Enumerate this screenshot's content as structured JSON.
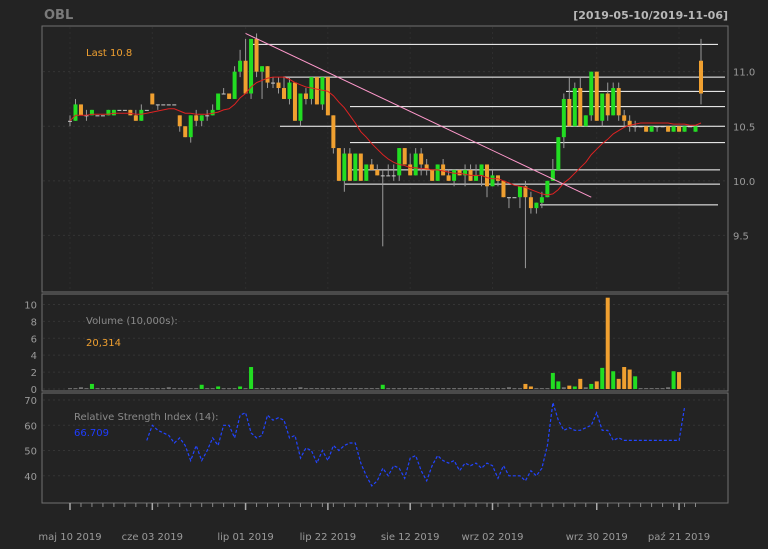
{
  "header": {
    "symbol": "OBL",
    "range": "[2019-05-10/2019-11-06]"
  },
  "price_panel": {
    "last_label": "Last 10.8"
  },
  "volume_panel": {
    "label": "Volume (10,000s):",
    "value": "20,314"
  },
  "rsi_panel": {
    "label": "Relative Strength Index (14):",
    "value": "66.709"
  },
  "colors": {
    "up": "#22dd22",
    "down": "#f0a030",
    "ma": "#dd2222",
    "rsi": "#2244ff",
    "line": "#ffffff",
    "trend": "#ff99cc",
    "frame": "#707070",
    "bg": "#232323"
  },
  "chart_data": [
    {
      "type": "candlestick",
      "title": "OBL",
      "subtitle": "[2019-05-10/2019-11-06]",
      "ylim": [
        9.0,
        11.4
      ],
      "yticks": [
        9.5,
        10.0,
        10.5,
        11.0
      ],
      "x_tick_labels": [
        "maj 10 2019",
        "cze 03 2019",
        "lip 01 2019",
        "lip 22 2019",
        "sie 12 2019",
        "wrz 02 2019",
        "wrz 30 2019",
        "paź 21 2019"
      ],
      "x_tick_index": [
        0,
        15,
        32,
        47,
        62,
        77,
        96,
        111
      ],
      "last": 10.8,
      "ohlc": [
        [
          10.55,
          10.6,
          10.5,
          10.55
        ],
        [
          10.55,
          10.75,
          10.55,
          10.7
        ],
        [
          10.7,
          10.7,
          10.6,
          10.6
        ],
        [
          10.6,
          10.65,
          10.55,
          10.6
        ],
        [
          10.6,
          10.65,
          10.6,
          10.65
        ],
        [
          10.6,
          10.6,
          10.6,
          10.6
        ],
        [
          10.6,
          10.6,
          10.6,
          10.6
        ],
        [
          10.6,
          10.65,
          10.6,
          10.65
        ],
        [
          10.6,
          10.65,
          10.6,
          10.65
        ],
        [
          10.65,
          10.65,
          10.65,
          10.65
        ],
        [
          10.65,
          10.65,
          10.65,
          10.65
        ],
        [
          10.65,
          10.65,
          10.6,
          10.6
        ],
        [
          10.6,
          10.65,
          10.55,
          10.55
        ],
        [
          10.55,
          10.7,
          10.55,
          10.65
        ],
        [
          10.65,
          10.65,
          10.65,
          10.65
        ],
        [
          10.8,
          10.8,
          10.7,
          10.7
        ],
        [
          10.7,
          10.7,
          10.65,
          10.7
        ],
        [
          10.7,
          10.7,
          10.7,
          10.7
        ],
        [
          10.7,
          10.7,
          10.7,
          10.7
        ],
        [
          10.7,
          10.7,
          10.7,
          10.7
        ],
        [
          10.6,
          10.6,
          10.45,
          10.5
        ],
        [
          10.5,
          10.5,
          10.4,
          10.4
        ],
        [
          10.4,
          10.6,
          10.35,
          10.6
        ],
        [
          10.6,
          10.65,
          10.5,
          10.55
        ],
        [
          10.55,
          10.6,
          10.5,
          10.6
        ],
        [
          10.6,
          10.65,
          10.55,
          10.6
        ],
        [
          10.6,
          10.7,
          10.6,
          10.65
        ],
        [
          10.65,
          10.8,
          10.65,
          10.8
        ],
        [
          10.8,
          10.85,
          10.8,
          10.8
        ],
        [
          10.8,
          10.8,
          10.75,
          10.75
        ],
        [
          10.75,
          11.05,
          10.75,
          11.0
        ],
        [
          11.0,
          11.2,
          10.95,
          11.1
        ],
        [
          11.1,
          11.3,
          10.8,
          10.8
        ],
        [
          10.8,
          11.3,
          10.75,
          11.3
        ],
        [
          11.3,
          11.35,
          10.95,
          11.0
        ],
        [
          11.0,
          11.05,
          10.75,
          11.05
        ],
        [
          11.05,
          11.05,
          10.85,
          10.9
        ],
        [
          10.9,
          10.95,
          10.85,
          10.9
        ],
        [
          10.9,
          10.95,
          10.8,
          10.85
        ],
        [
          10.85,
          10.95,
          10.75,
          10.75
        ],
        [
          10.75,
          10.95,
          10.7,
          10.9
        ],
        [
          10.9,
          10.9,
          10.55,
          10.55
        ],
        [
          10.55,
          10.8,
          10.5,
          10.8
        ],
        [
          10.8,
          10.85,
          10.7,
          10.75
        ],
        [
          10.75,
          10.95,
          10.7,
          10.95
        ],
        [
          10.95,
          10.95,
          10.7,
          10.7
        ],
        [
          10.7,
          10.95,
          10.65,
          10.95
        ],
        [
          10.95,
          10.95,
          10.6,
          10.6
        ],
        [
          10.6,
          10.6,
          10.25,
          10.3
        ],
        [
          10.3,
          10.3,
          10.0,
          10.0
        ],
        [
          10.0,
          10.3,
          9.9,
          10.25
        ],
        [
          10.25,
          10.3,
          10.0,
          10.0
        ],
        [
          10.0,
          10.25,
          10.0,
          10.25
        ],
        [
          10.25,
          10.25,
          10.0,
          10.0
        ],
        [
          10.0,
          10.15,
          10.0,
          10.15
        ],
        [
          10.15,
          10.2,
          10.1,
          10.1
        ],
        [
          10.1,
          10.15,
          10.05,
          10.05
        ],
        [
          10.05,
          10.1,
          9.4,
          10.05
        ],
        [
          10.05,
          10.15,
          10.05,
          10.05
        ],
        [
          10.05,
          10.15,
          10.0,
          10.05
        ],
        [
          10.05,
          10.3,
          10.0,
          10.3
        ],
        [
          10.3,
          10.3,
          10.15,
          10.15
        ],
        [
          10.15,
          10.25,
          10.05,
          10.05
        ],
        [
          10.05,
          10.3,
          10.05,
          10.25
        ],
        [
          10.25,
          10.3,
          10.05,
          10.15
        ],
        [
          10.15,
          10.2,
          10.05,
          10.1
        ],
        [
          10.1,
          10.1,
          10.0,
          10.0
        ],
        [
          10.0,
          10.15,
          10.0,
          10.15
        ],
        [
          10.15,
          10.2,
          10.05,
          10.05
        ],
        [
          10.05,
          10.1,
          10.0,
          10.0
        ],
        [
          10.0,
          10.1,
          9.95,
          10.1
        ],
        [
          10.1,
          10.1,
          10.05,
          10.05
        ],
        [
          10.05,
          10.15,
          9.95,
          10.1
        ],
        [
          10.1,
          10.15,
          10.0,
          10.0
        ],
        [
          10.0,
          10.15,
          10.0,
          10.05
        ],
        [
          10.05,
          10.15,
          9.95,
          10.15
        ],
        [
          10.15,
          10.15,
          9.85,
          9.95
        ],
        [
          9.95,
          10.1,
          9.95,
          10.05
        ],
        [
          10.05,
          10.05,
          9.95,
          10.0
        ],
        [
          10.0,
          10.0,
          9.85,
          9.85
        ],
        [
          9.85,
          9.85,
          9.75,
          9.85
        ],
        [
          9.85,
          9.85,
          9.85,
          9.85
        ],
        [
          9.85,
          9.95,
          9.75,
          9.95
        ],
        [
          9.95,
          10.0,
          9.2,
          9.85
        ],
        [
          9.85,
          9.9,
          9.7,
          9.75
        ],
        [
          9.75,
          9.8,
          9.7,
          9.8
        ],
        [
          9.8,
          9.9,
          9.75,
          9.85
        ],
        [
          9.85,
          10.0,
          9.85,
          10.0
        ],
        [
          10.0,
          10.2,
          10.0,
          10.1
        ],
        [
          10.1,
          10.4,
          10.1,
          10.4
        ],
        [
          10.4,
          10.8,
          10.3,
          10.75
        ],
        [
          10.75,
          10.95,
          10.5,
          10.5
        ],
        [
          10.5,
          10.9,
          10.5,
          10.85
        ],
        [
          10.85,
          10.95,
          10.5,
          10.5
        ],
        [
          10.5,
          10.6,
          10.5,
          10.6
        ],
        [
          10.6,
          11.0,
          10.55,
          11.0
        ],
        [
          11.0,
          11.0,
          10.55,
          10.55
        ],
        [
          10.55,
          10.8,
          10.5,
          10.8
        ],
        [
          10.8,
          10.9,
          10.55,
          10.6
        ],
        [
          10.6,
          10.9,
          10.6,
          10.85
        ],
        [
          10.85,
          10.9,
          10.55,
          10.6
        ],
        [
          10.6,
          10.65,
          10.5,
          10.55
        ],
        [
          10.55,
          10.6,
          10.45,
          10.5
        ],
        [
          10.5,
          10.55,
          10.45,
          10.5
        ],
        [
          10.5,
          10.5,
          10.5,
          10.5
        ],
        [
          10.5,
          10.5,
          10.45,
          10.45
        ],
        [
          10.45,
          10.5,
          10.45,
          10.5
        ],
        [
          10.5,
          10.5,
          10.45,
          10.5
        ],
        [
          10.5,
          10.5,
          10.5,
          10.5
        ],
        [
          10.5,
          10.5,
          10.45,
          10.45
        ],
        [
          10.45,
          10.5,
          10.45,
          10.5
        ],
        [
          10.5,
          10.5,
          10.45,
          10.45
        ],
        [
          10.45,
          10.5,
          10.45,
          10.5
        ],
        [
          10.5,
          10.5,
          10.5,
          10.5
        ],
        [
          10.45,
          10.5,
          10.45,
          10.5
        ],
        [
          11.1,
          11.3,
          10.7,
          10.8
        ]
      ],
      "sma": [
        10.55,
        10.6,
        10.6,
        10.6,
        10.61,
        10.61,
        10.61,
        10.61,
        10.62,
        10.62,
        10.62,
        10.62,
        10.61,
        10.61,
        10.62,
        10.63,
        10.64,
        10.65,
        10.66,
        10.66,
        10.64,
        10.62,
        10.62,
        10.61,
        10.61,
        10.61,
        10.62,
        10.63,
        10.65,
        10.66,
        10.7,
        10.76,
        10.8,
        10.86,
        10.9,
        10.92,
        10.94,
        10.95,
        10.95,
        10.95,
        10.93,
        10.9,
        10.88,
        10.86,
        10.85,
        10.84,
        10.83,
        10.82,
        10.78,
        10.72,
        10.67,
        10.6,
        10.53,
        10.45,
        10.4,
        10.34,
        10.29,
        10.24,
        10.2,
        10.17,
        10.15,
        10.14,
        10.12,
        10.12,
        10.11,
        10.11,
        10.1,
        10.1,
        10.09,
        10.08,
        10.07,
        10.07,
        10.06,
        10.05,
        10.05,
        10.05,
        10.03,
        10.02,
        10.02,
        10.0,
        9.98,
        9.96,
        9.95,
        9.94,
        9.92,
        9.9,
        9.88,
        9.87,
        9.88,
        9.92,
        9.98,
        10.02,
        10.07,
        10.12,
        10.17,
        10.24,
        10.29,
        10.34,
        10.38,
        10.43,
        10.46,
        10.49,
        10.51,
        10.52,
        10.53,
        10.53,
        10.53,
        10.53,
        10.53,
        10.53,
        10.52,
        10.52,
        10.52,
        10.51,
        10.51,
        10.53
      ],
      "horizontal_levels": [
        11.25,
        10.95,
        10.82,
        10.68,
        10.5,
        10.35,
        10.1,
        9.97,
        9.78
      ],
      "trendline": [
        [
          32,
          11.35
        ],
        [
          95,
          9.85
        ]
      ]
    },
    {
      "type": "bar",
      "title": "Volume (10,000s):",
      "ylim": [
        0,
        11
      ],
      "yticks": [
        0,
        2,
        4,
        6,
        8,
        10
      ],
      "last_value": "20,314",
      "values": [
        0.1,
        0.1,
        0.2,
        0.1,
        0.6,
        0.1,
        0.1,
        0.1,
        0.1,
        0.1,
        0.1,
        0.1,
        0.1,
        0.1,
        0.1,
        0.1,
        0.1,
        0.1,
        0.2,
        0.1,
        0.1,
        0.1,
        0.1,
        0.1,
        0.5,
        0.1,
        0.1,
        0.3,
        0.1,
        0.1,
        0.1,
        0.3,
        0.1,
        2.6,
        0.1,
        0.1,
        0.1,
        0.1,
        0.1,
        0.1,
        0.1,
        0.1,
        0.2,
        0.1,
        0.1,
        0.1,
        0.1,
        0.1,
        0.1,
        0.1,
        0.1,
        0.1,
        0.1,
        0.1,
        0.1,
        0.1,
        0.1,
        0.5,
        0.1,
        0.1,
        0.1,
        0.1,
        0.1,
        0.1,
        0.1,
        0.1,
        0.1,
        0.1,
        0.1,
        0.1,
        0.1,
        0.1,
        0.1,
        0.1,
        0.1,
        0.1,
        0.1,
        0.1,
        0.1,
        0.1,
        0.2,
        0.1,
        0.1,
        0.6,
        0.3,
        0.1,
        0.1,
        0.1,
        1.9,
        0.9,
        0.2,
        0.4,
        0.3,
        1.2,
        0.2,
        0.6,
        0.9,
        2.5,
        10.8,
        2.1,
        1.2,
        2.6,
        2.3,
        1.5,
        0.1,
        0.1,
        0.1,
        0.1,
        0.1,
        0.2,
        2.1,
        2.0
      ]
    },
    {
      "type": "line",
      "title": "Relative Strength Index (14):",
      "ylim": [
        30,
        72
      ],
      "yticks": [
        40,
        50,
        60,
        70
      ],
      "last_value": 66.709,
      "start_index": 14,
      "values": [
        54,
        60,
        58,
        57,
        56,
        53,
        55,
        52,
        46,
        52,
        46,
        50,
        55,
        52,
        60,
        60,
        55,
        64,
        65,
        57,
        55,
        56,
        64,
        62,
        63,
        62,
        55,
        56,
        47,
        51,
        50,
        45,
        50,
        46,
        52,
        50,
        52,
        53,
        53,
        45,
        40,
        36,
        38,
        43,
        40,
        44,
        43,
        39,
        47,
        48,
        42,
        38,
        44,
        48,
        46,
        45,
        46,
        42,
        45,
        44,
        45,
        43,
        45,
        44,
        39,
        44,
        40,
        40,
        40,
        38,
        42,
        40,
        43,
        52,
        69,
        62,
        58,
        59,
        58,
        58,
        59,
        60,
        65,
        58,
        58,
        54,
        55,
        54,
        54,
        54,
        54,
        54,
        54,
        54,
        54,
        54,
        54,
        54,
        67
      ]
    }
  ]
}
